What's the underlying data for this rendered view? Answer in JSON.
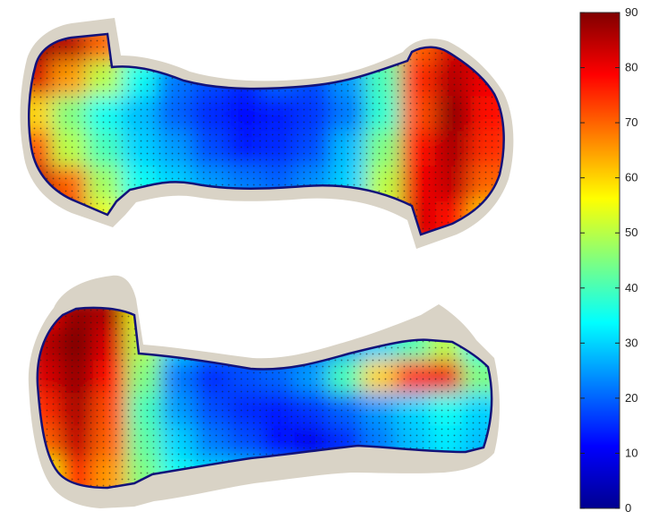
{
  "chart_data": {
    "type": "heatmap",
    "title": "",
    "xlabel": "",
    "ylabel": "",
    "colorscale": "jet",
    "colorbar": {
      "range": [
        0,
        90
      ],
      "ticks": [
        "0",
        "10",
        "20",
        "30",
        "40",
        "50",
        "60",
        "70",
        "80",
        "90"
      ]
    },
    "panels": [
      {
        "name": "",
        "grid_cols": 14,
        "grid_rows": 6,
        "values": [
          [
            88,
            85,
            70,
            45,
            30,
            28,
            25,
            24,
            26,
            30,
            45,
            70,
            82,
            86
          ],
          [
            82,
            65,
            50,
            35,
            22,
            18,
            15,
            20,
            18,
            25,
            40,
            75,
            85,
            80
          ],
          [
            60,
            45,
            35,
            28,
            20,
            15,
            12,
            14,
            16,
            22,
            38,
            72,
            88,
            78
          ],
          [
            72,
            50,
            40,
            30,
            25,
            18,
            14,
            15,
            18,
            28,
            45,
            78,
            86,
            75
          ],
          [
            85,
            70,
            48,
            35,
            30,
            25,
            22,
            20,
            24,
            30,
            50,
            80,
            84,
            70
          ],
          [
            88,
            80,
            55,
            40,
            35,
            32,
            28,
            26,
            28,
            35,
            55,
            82,
            78,
            60
          ]
        ]
      },
      {
        "name": "",
        "grid_cols": 14,
        "grid_rows": 6,
        "values": [
          [
            80,
            88,
            86,
            55,
            35,
            28,
            25,
            24,
            26,
            30,
            35,
            45,
            55,
            40
          ],
          [
            85,
            90,
            82,
            50,
            30,
            22,
            20,
            22,
            20,
            25,
            30,
            40,
            50,
            35
          ],
          [
            82,
            88,
            78,
            45,
            22,
            15,
            18,
            20,
            25,
            40,
            60,
            75,
            80,
            45
          ],
          [
            75,
            86,
            72,
            40,
            25,
            18,
            15,
            14,
            16,
            20,
            25,
            30,
            35,
            30
          ],
          [
            70,
            84,
            70,
            42,
            30,
            22,
            18,
            12,
            10,
            15,
            22,
            28,
            32,
            28
          ],
          [
            55,
            75,
            65,
            45,
            35,
            30,
            28,
            22,
            18,
            20,
            25,
            30,
            30,
            25
          ]
        ]
      }
    ]
  }
}
